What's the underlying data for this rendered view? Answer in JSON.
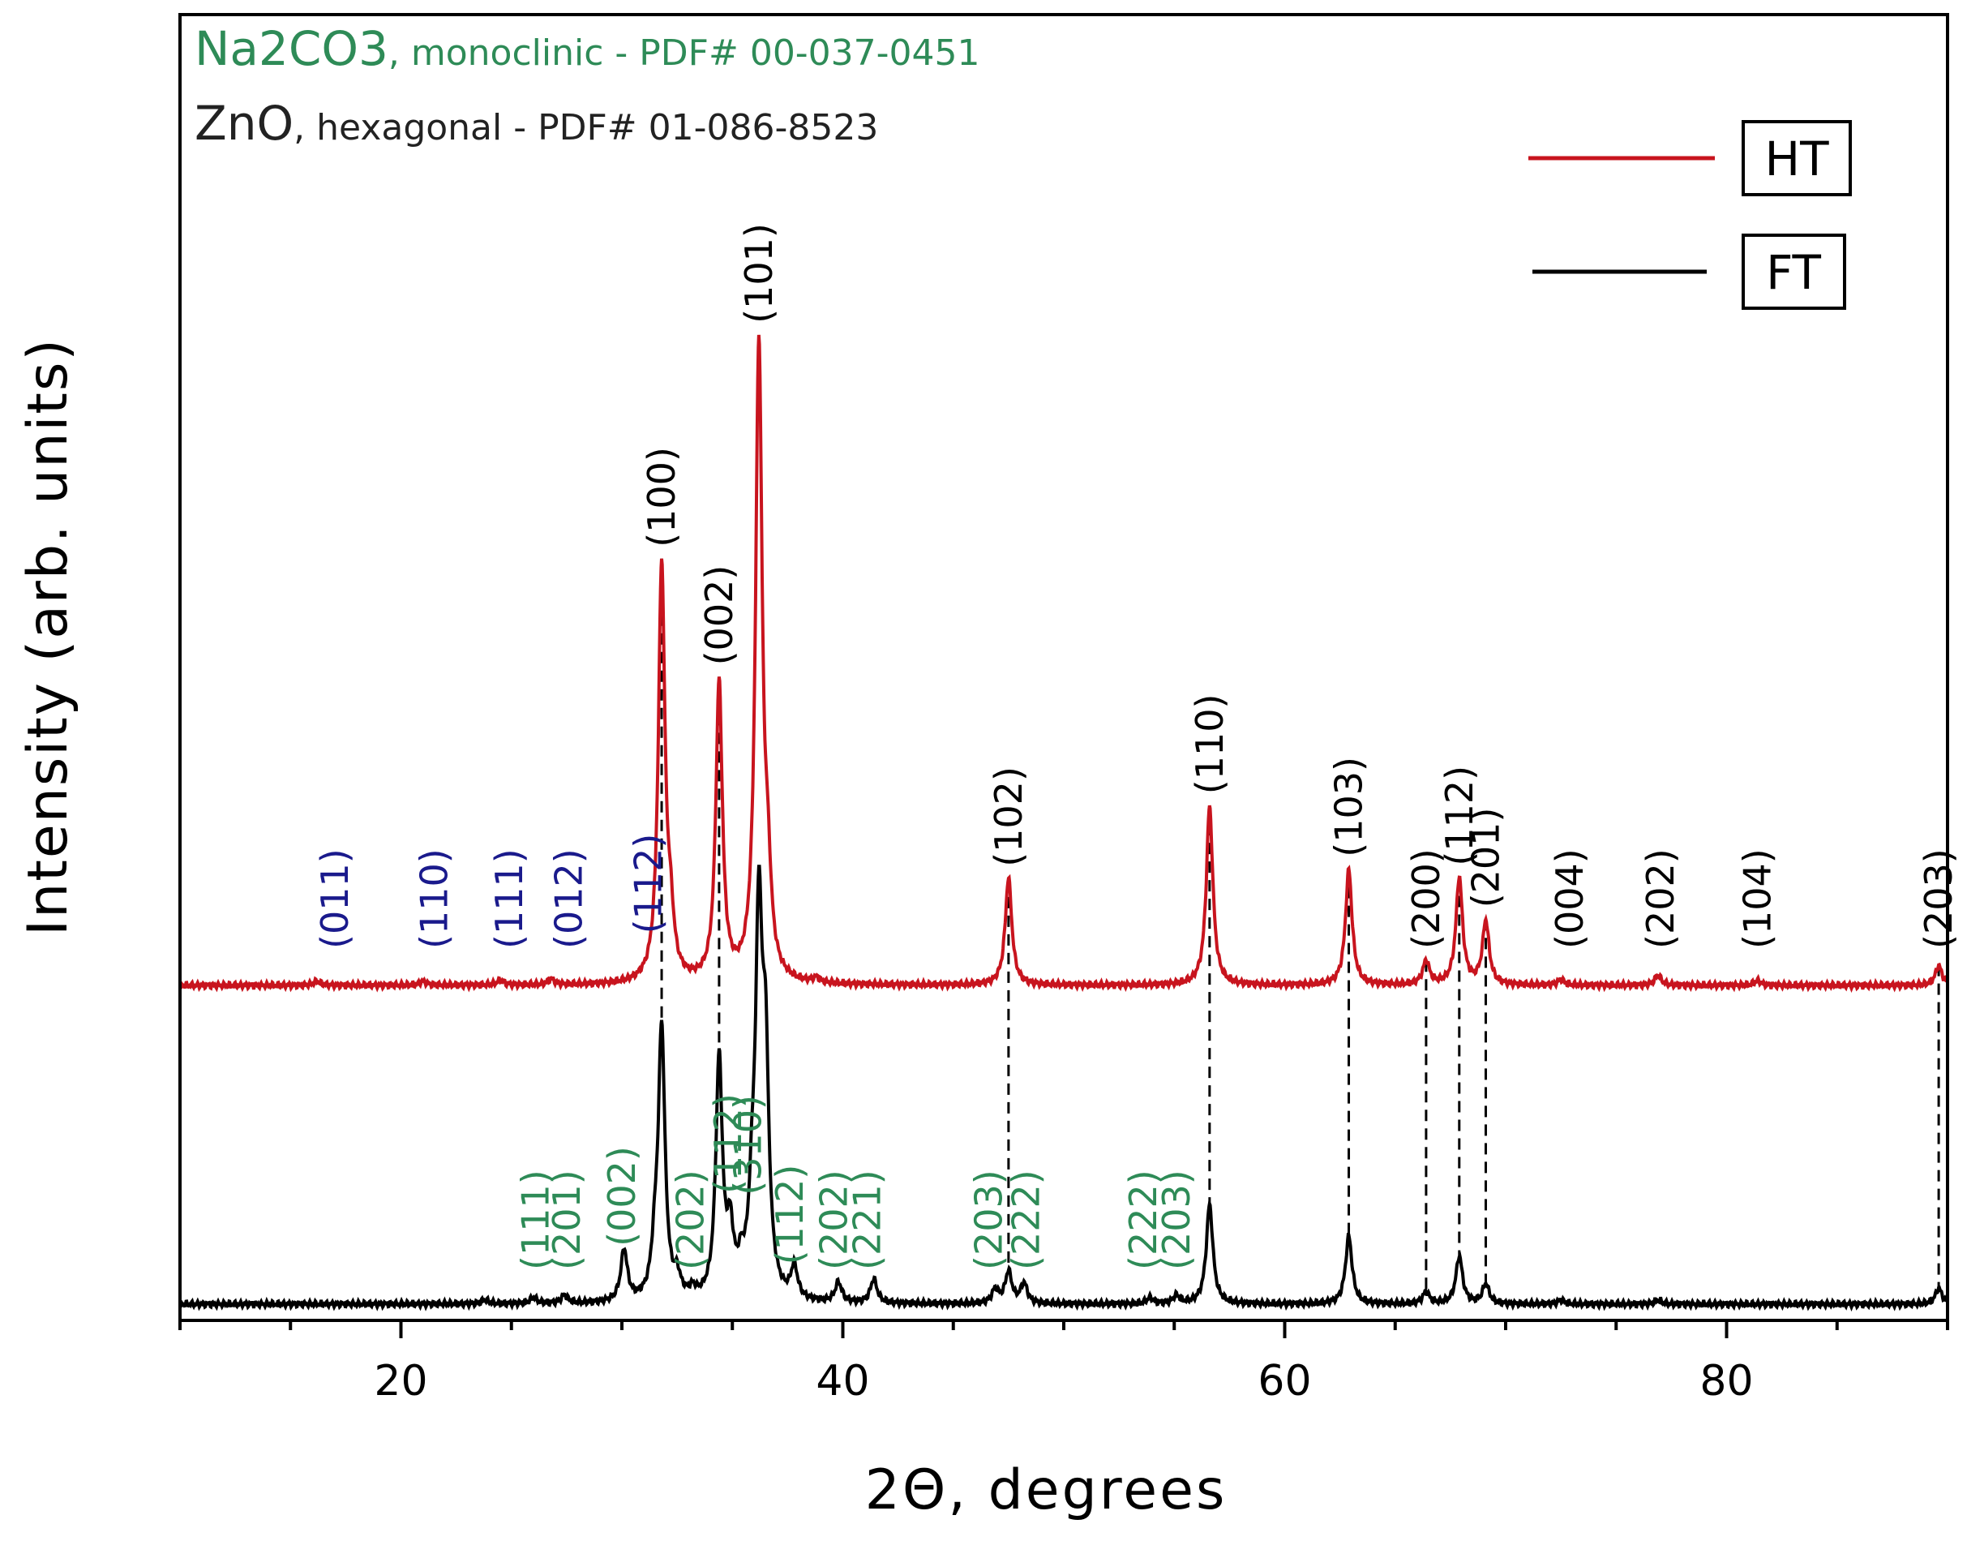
{
  "chart_data": {
    "type": "line",
    "xlabel": "2Θ, degrees",
    "ylabel": "Intensity (arb. units)",
    "xlim": [
      10,
      90
    ],
    "x_ticks": [
      20,
      40,
      60,
      80
    ],
    "grid": false,
    "legend_position": "top-right",
    "reference_lines": [
      {
        "compound": "Na2CO3",
        "text": ", monoclinic - PDF# 00-037-0451",
        "color": "#2e8b57"
      },
      {
        "compound": "ZnO",
        "text": ", hexagonal - PDF# 01-086-8523",
        "color": "#222222"
      }
    ],
    "series": [
      {
        "name": "HT",
        "color": "#c8141e",
        "baseline": 0.0,
        "peaks": [
          {
            "x": 16.2,
            "h": 0.01
          },
          {
            "x": 21.0,
            "h": 0.01
          },
          {
            "x": 24.5,
            "h": 0.012
          },
          {
            "x": 26.8,
            "h": 0.014
          },
          {
            "x": 31.8,
            "h": 1.05
          },
          {
            "x": 32.2,
            "h": 0.12
          },
          {
            "x": 34.4,
            "h": 0.75
          },
          {
            "x": 36.2,
            "h": 1.6
          },
          {
            "x": 36.6,
            "h": 0.2
          },
          {
            "x": 38.8,
            "h": 0.012
          },
          {
            "x": 47.5,
            "h": 0.27
          },
          {
            "x": 56.6,
            "h": 0.45
          },
          {
            "x": 62.9,
            "h": 0.29
          },
          {
            "x": 66.4,
            "h": 0.06
          },
          {
            "x": 67.9,
            "h": 0.27
          },
          {
            "x": 69.1,
            "h": 0.16
          },
          {
            "x": 72.5,
            "h": 0.014
          },
          {
            "x": 76.9,
            "h": 0.025
          },
          {
            "x": 81.4,
            "h": 0.012
          },
          {
            "x": 89.6,
            "h": 0.05
          }
        ]
      },
      {
        "name": "FT",
        "color": "#000000",
        "baseline": 0.0,
        "peaks": [
          {
            "x": 23.8,
            "h": 0.01
          },
          {
            "x": 26.0,
            "h": 0.015
          },
          {
            "x": 27.4,
            "h": 0.02
          },
          {
            "x": 30.1,
            "h": 0.13
          },
          {
            "x": 31.5,
            "h": 0.1
          },
          {
            "x": 31.8,
            "h": 0.68
          },
          {
            "x": 32.5,
            "h": 0.05
          },
          {
            "x": 33.2,
            "h": 0.02
          },
          {
            "x": 34.4,
            "h": 0.6
          },
          {
            "x": 34.9,
            "h": 0.15
          },
          {
            "x": 35.4,
            "h": 0.06
          },
          {
            "x": 35.9,
            "h": 0.18
          },
          {
            "x": 36.2,
            "h": 0.9
          },
          {
            "x": 36.5,
            "h": 0.55
          },
          {
            "x": 37.8,
            "h": 0.08
          },
          {
            "x": 39.8,
            "h": 0.05
          },
          {
            "x": 41.4,
            "h": 0.06
          },
          {
            "x": 46.9,
            "h": 0.035
          },
          {
            "x": 47.5,
            "h": 0.08
          },
          {
            "x": 48.2,
            "h": 0.05
          },
          {
            "x": 53.9,
            "h": 0.015
          },
          {
            "x": 55.1,
            "h": 0.02
          },
          {
            "x": 56.6,
            "h": 0.25
          },
          {
            "x": 62.9,
            "h": 0.17
          },
          {
            "x": 66.4,
            "h": 0.03
          },
          {
            "x": 67.9,
            "h": 0.12
          },
          {
            "x": 69.1,
            "h": 0.05
          },
          {
            "x": 72.5,
            "h": 0.01
          },
          {
            "x": 76.9,
            "h": 0.01
          },
          {
            "x": 89.6,
            "h": 0.04
          }
        ]
      }
    ],
    "dashed_guides_x": [
      31.8,
      34.4,
      47.5,
      56.6,
      62.9,
      66.4,
      67.9,
      69.1,
      89.6
    ],
    "annotations": [
      {
        "text": "(011)",
        "x": 17.0,
        "series": "HT",
        "color": "#1a1a8c"
      },
      {
        "text": "(110)",
        "x": 21.5,
        "series": "HT",
        "color": "#1a1a8c"
      },
      {
        "text": "(111)",
        "x": 24.9,
        "series": "HT",
        "color": "#1a1a8c"
      },
      {
        "text": "(012)",
        "x": 27.6,
        "series": "HT",
        "color": "#1a1a8c"
      },
      {
        "text": "(112)",
        "x": 31.2,
        "series": "HT",
        "color": "#1a1a8c"
      },
      {
        "text": "(100)",
        "x": 31.8,
        "series": "HT",
        "color": "#000000"
      },
      {
        "text": "(002)",
        "x": 34.4,
        "series": "HT",
        "color": "#000000"
      },
      {
        "text": "(101)",
        "x": 36.2,
        "series": "HT",
        "color": "#000000"
      },
      {
        "text": "(102)",
        "x": 47.5,
        "series": "HT",
        "color": "#000000"
      },
      {
        "text": "(110)",
        "x": 56.6,
        "series": "HT",
        "color": "#000000"
      },
      {
        "text": "(103)",
        "x": 62.9,
        "series": "HT",
        "color": "#000000"
      },
      {
        "text": "(200)",
        "x": 66.4,
        "series": "HT",
        "color": "#000000"
      },
      {
        "text": "(112)",
        "x": 67.9,
        "series": "HT",
        "color": "#000000"
      },
      {
        "text": "(201)",
        "x": 69.1,
        "series": "HT",
        "color": "#000000"
      },
      {
        "text": "(004)",
        "x": 72.9,
        "series": "HT",
        "color": "#000000"
      },
      {
        "text": "(202)",
        "x": 77.0,
        "series": "HT",
        "color": "#000000"
      },
      {
        "text": "(104)",
        "x": 81.4,
        "series": "HT",
        "color": "#000000"
      },
      {
        "text": "(203)",
        "x": 89.6,
        "series": "HT",
        "color": "#000000"
      },
      {
        "text": "(111)",
        "x": 26.1,
        "series": "FT",
        "color": "#2e8b57"
      },
      {
        "text": "(201)",
        "x": 27.5,
        "series": "FT",
        "color": "#2e8b57"
      },
      {
        "text": "(002)",
        "x": 30.0,
        "series": "FT",
        "color": "#2e8b57"
      },
      {
        "text": "(202)",
        "x": 33.1,
        "series": "FT",
        "color": "#2e8b57"
      },
      {
        "text": "(112)",
        "x": 34.8,
        "series": "FT",
        "color": "#2e8b57"
      },
      {
        "text": "(310)",
        "x": 35.7,
        "series": "FT",
        "color": "#2e8b57"
      },
      {
        "text": "(112)",
        "x": 37.6,
        "series": "FT",
        "color": "#2e8b57"
      },
      {
        "text": "(202)",
        "x": 39.6,
        "series": "FT",
        "color": "#2e8b57"
      },
      {
        "text": "(221)",
        "x": 41.1,
        "series": "FT",
        "color": "#2e8b57"
      },
      {
        "text": "(203)",
        "x": 46.6,
        "series": "FT",
        "color": "#2e8b57"
      },
      {
        "text": "(222)",
        "x": 48.3,
        "series": "FT",
        "color": "#2e8b57"
      },
      {
        "text": "(222)",
        "x": 53.6,
        "series": "FT",
        "color": "#2e8b57"
      },
      {
        "text": "(203)",
        "x": 55.1,
        "series": "FT",
        "color": "#2e8b57"
      }
    ]
  }
}
